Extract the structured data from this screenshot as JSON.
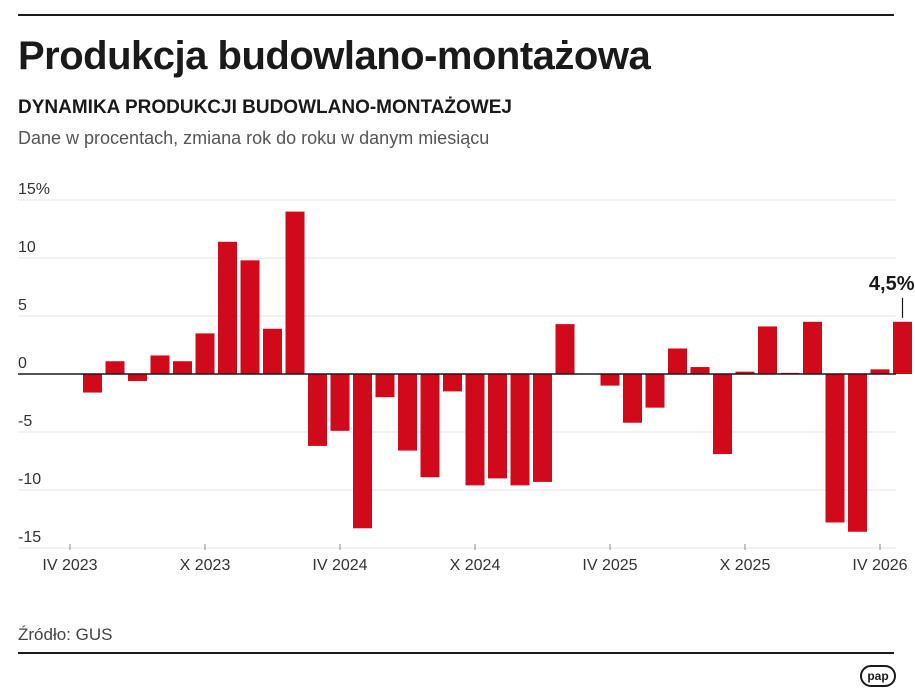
{
  "header": {
    "title": "Produkcja budowlano-montażowa",
    "subtitle": "DYNAMIKA PRODUKCJI BUDOWLANO-MONTAŻOWEJ",
    "description": "Dane w procentach, zmiana rok do roku w danym miesiącu"
  },
  "footer": {
    "source": "Źródło: GUS",
    "logo_text": "pap"
  },
  "chart_data": {
    "type": "bar",
    "title": "DYNAMIKA PRODUKCJI BUDOWLANO-MONTAŻOWEJ",
    "xlabel": "",
    "ylabel": "",
    "ylim": [
      -15,
      15
    ],
    "grid": true,
    "bar_color": "#d10a1b",
    "y_ticks": [
      {
        "value": 15,
        "label": "15%"
      },
      {
        "value": 10,
        "label": "10"
      },
      {
        "value": 5,
        "label": "5"
      },
      {
        "value": 0,
        "label": "0"
      },
      {
        "value": -5,
        "label": "-5"
      },
      {
        "value": -10,
        "label": "-10"
      },
      {
        "value": -15,
        "label": "-15"
      }
    ],
    "x_ticks": [
      {
        "index": 0,
        "label": "IV 2023"
      },
      {
        "index": 6,
        "label": "X 2023"
      },
      {
        "index": 12,
        "label": "IV 2024"
      },
      {
        "index": 18,
        "label": "X 2024"
      },
      {
        "index": 24,
        "label": "IV 2025"
      },
      {
        "index": 30,
        "label": "X 2025"
      },
      {
        "index": 36,
        "label": "IV 2026"
      }
    ],
    "values": [
      null,
      -1.6,
      1.1,
      -0.6,
      1.6,
      1.1,
      3.5,
      11.4,
      9.8,
      3.9,
      14.0,
      -6.2,
      -4.9,
      -13.3,
      -2.0,
      -6.6,
      -8.9,
      -1.5,
      -9.6,
      -9.0,
      -9.6,
      -9.3,
      4.3,
      null,
      -1.0,
      -4.2,
      -2.9,
      2.2,
      0.6,
      -6.9,
      0.2,
      4.1,
      0.1,
      4.5,
      -12.8,
      -13.6,
      0.4,
      4.5
    ],
    "annotation": {
      "index": 37,
      "label": "4,5%"
    }
  }
}
